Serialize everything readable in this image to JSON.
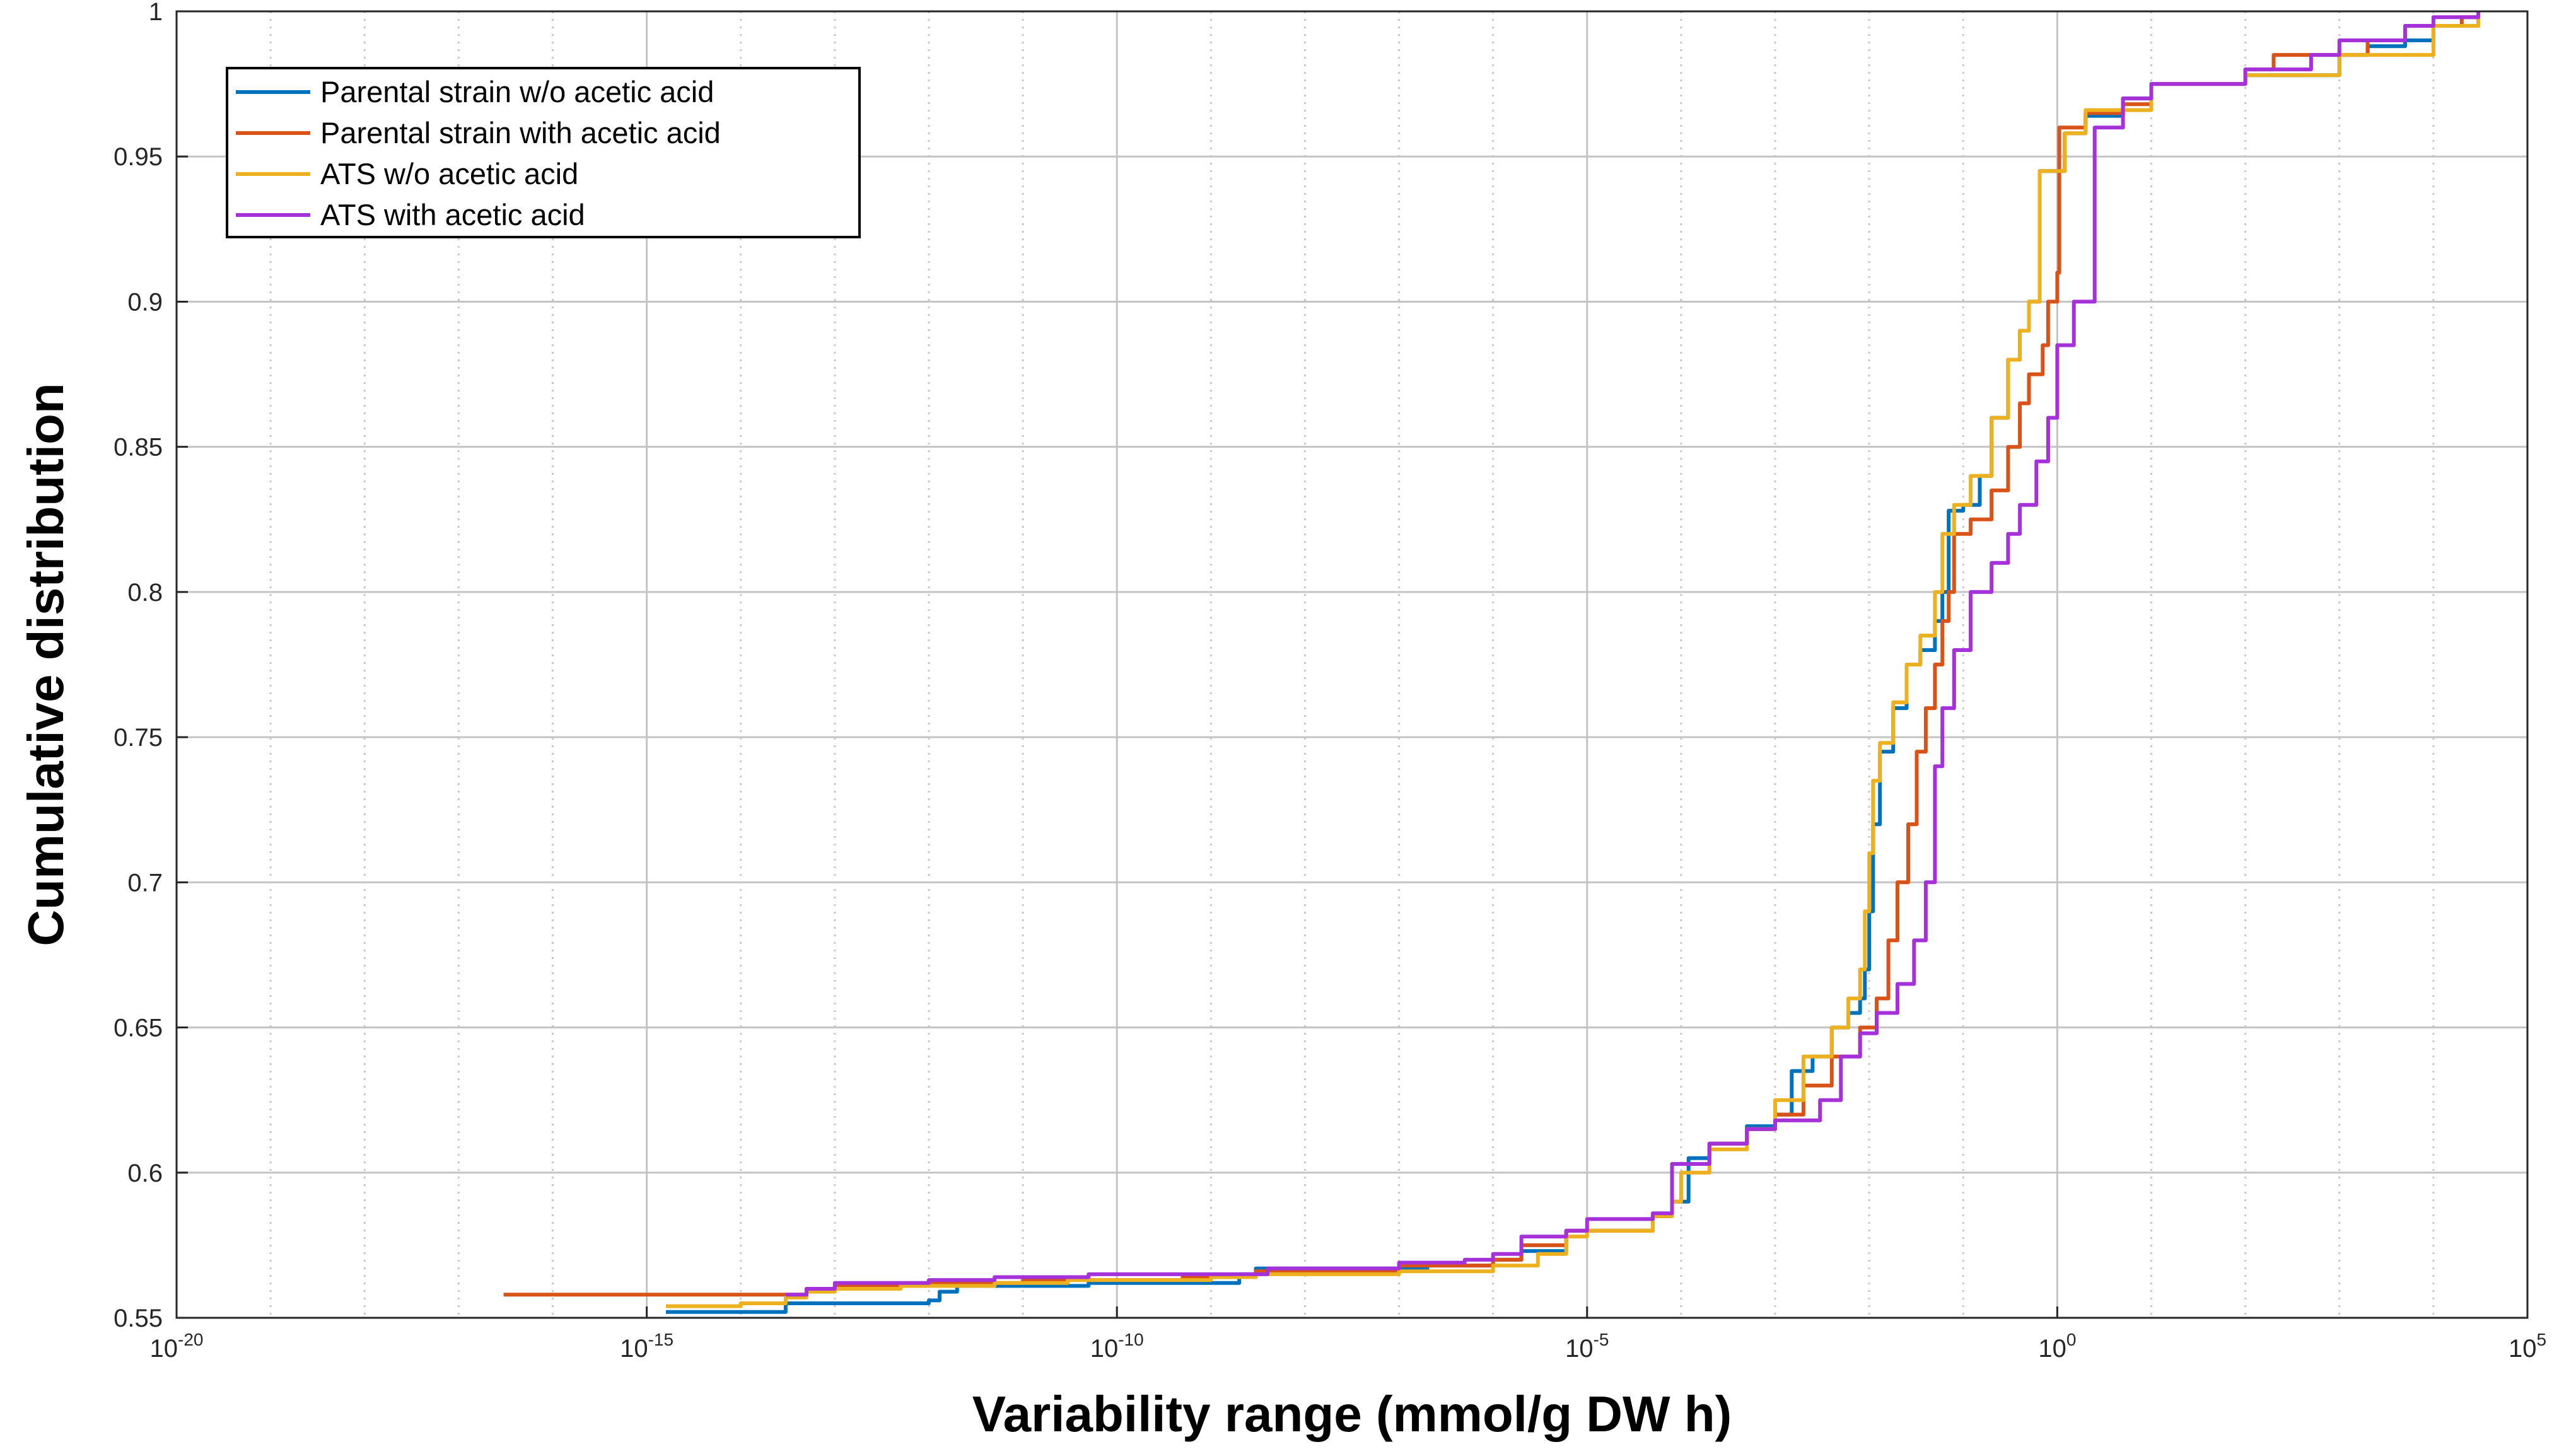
{
  "chart_data": {
    "type": "line",
    "title": "",
    "xlabel": "Variability range (mmol/g DW h)",
    "ylabel": "Cumulative distribution",
    "x_scale": "log",
    "xlim": [
      1e-20,
      100000
    ],
    "ylim": [
      0.55,
      1
    ],
    "x_ticks": [
      {
        "base": "10",
        "exp": "-20",
        "value": 1e-20
      },
      {
        "base": "10",
        "exp": "-15",
        "value": 1e-15
      },
      {
        "base": "10",
        "exp": "-10",
        "value": 1e-10
      },
      {
        "base": "10",
        "exp": "-5",
        "value": 1e-05
      },
      {
        "base": "10",
        "exp": "0",
        "value": 1
      },
      {
        "base": "10",
        "exp": "5",
        "value": 100000
      }
    ],
    "y_ticks": [
      "0.55",
      "0.6",
      "0.65",
      "0.7",
      "0.75",
      "0.8",
      "0.85",
      "0.9",
      "0.95",
      "1"
    ],
    "grid": true,
    "legend_position": "top-left",
    "series": [
      {
        "name": "Parental strain w/o acetic acid",
        "color": "#0072BD",
        "points": [
          [
            1.6e-15,
            0.552
          ],
          [
            3e-14,
            0.552
          ],
          [
            3e-14,
            0.555
          ],
          [
            1e-12,
            0.556
          ],
          [
            1.3e-12,
            0.556
          ],
          [
            1.3e-12,
            0.559
          ],
          [
            2e-12,
            0.561
          ],
          [
            5e-11,
            0.562
          ],
          [
            2e-09,
            0.565
          ],
          [
            3e-09,
            0.567
          ],
          [
            2e-08,
            0.567
          ],
          [
            2e-07,
            0.568
          ],
          [
            1e-06,
            0.57
          ],
          [
            2e-06,
            0.573
          ],
          [
            5e-06,
            0.573
          ],
          [
            6e-06,
            0.58
          ],
          [
            1e-05,
            0.58
          ],
          [
            5e-05,
            0.585
          ],
          [
            8e-05,
            0.59
          ],
          [
            0.00012,
            0.59
          ],
          [
            0.00012,
            0.605
          ],
          [
            0.0002,
            0.61
          ],
          [
            0.0005,
            0.616
          ],
          [
            0.001,
            0.62
          ],
          [
            0.0015,
            0.635
          ],
          [
            0.0025,
            0.64
          ],
          [
            0.004,
            0.65
          ],
          [
            0.006,
            0.655
          ],
          [
            0.008,
            0.66
          ],
          [
            0.009,
            0.67
          ],
          [
            0.01,
            0.69
          ],
          [
            0.011,
            0.72
          ],
          [
            0.013,
            0.745
          ],
          [
            0.018,
            0.76
          ],
          [
            0.025,
            0.775
          ],
          [
            0.035,
            0.78
          ],
          [
            0.05,
            0.79
          ],
          [
            0.06,
            0.8
          ],
          [
            0.07,
            0.828
          ],
          [
            0.1,
            0.83
          ],
          [
            0.15,
            0.84
          ],
          [
            0.2,
            0.86
          ],
          [
            0.3,
            0.88
          ],
          [
            0.4,
            0.89
          ],
          [
            0.5,
            0.9
          ],
          [
            0.6,
            0.9
          ],
          [
            0.65,
            0.945
          ],
          [
            1.2,
            0.958
          ],
          [
            2,
            0.964
          ],
          [
            5,
            0.97
          ],
          [
            10.0,
            0.975
          ],
          [
            100.0,
            0.978
          ],
          [
            1000.0,
            0.985
          ],
          [
            2000.0,
            0.988
          ],
          [
            5000.0,
            0.99
          ],
          [
            10000.0,
            0.995
          ],
          [
            30000.0,
            1.0
          ]
        ]
      },
      {
        "name": "Parental strain with acetic acid",
        "color": "#D95319",
        "points": [
          [
            3e-17,
            0.558
          ],
          [
            1e-15,
            0.558
          ],
          [
            2e-14,
            0.558
          ],
          [
            5e-14,
            0.56
          ],
          [
            1e-13,
            0.561
          ],
          [
            1e-12,
            0.562
          ],
          [
            1e-11,
            0.563
          ],
          [
            5e-10,
            0.564
          ],
          [
            3e-09,
            0.566
          ],
          [
            1e-07,
            0.568
          ],
          [
            1e-06,
            0.57
          ],
          [
            2e-06,
            0.575
          ],
          [
            6e-06,
            0.58
          ],
          [
            1e-05,
            0.58
          ],
          [
            5e-05,
            0.585
          ],
          [
            8e-05,
            0.59
          ],
          [
            8e-05,
            0.603
          ],
          [
            0.0002,
            0.61
          ],
          [
            0.0005,
            0.615
          ],
          [
            0.001,
            0.62
          ],
          [
            0.002,
            0.63
          ],
          [
            0.004,
            0.64
          ],
          [
            0.008,
            0.65
          ],
          [
            0.012,
            0.66
          ],
          [
            0.016,
            0.68
          ],
          [
            0.02,
            0.7
          ],
          [
            0.026,
            0.72
          ],
          [
            0.032,
            0.745
          ],
          [
            0.04,
            0.76
          ],
          [
            0.05,
            0.775
          ],
          [
            0.06,
            0.79
          ],
          [
            0.07,
            0.8
          ],
          [
            0.08,
            0.82
          ],
          [
            0.12,
            0.825
          ],
          [
            0.2,
            0.835
          ],
          [
            0.3,
            0.85
          ],
          [
            0.4,
            0.865
          ],
          [
            0.5,
            0.875
          ],
          [
            0.7,
            0.885
          ],
          [
            0.8,
            0.9
          ],
          [
            1.0,
            0.91
          ],
          [
            1.05,
            0.96
          ],
          [
            2,
            0.965
          ],
          [
            5,
            0.968
          ],
          [
            10.0,
            0.975
          ],
          [
            100.0,
            0.98
          ],
          [
            200.0,
            0.985
          ],
          [
            1000.0,
            0.985
          ],
          [
            2000.0,
            0.99
          ],
          [
            5000.0,
            0.995
          ],
          [
            20000.0,
            0.998
          ],
          [
            30000.0,
            1.0
          ]
        ]
      },
      {
        "name": "ATS w/o acetic acid",
        "color": "#EDB120",
        "points": [
          [
            1.6e-15,
            0.554
          ],
          [
            1e-14,
            0.555
          ],
          [
            3e-14,
            0.557
          ],
          [
            5e-14,
            0.559
          ],
          [
            1e-13,
            0.56
          ],
          [
            5e-13,
            0.561
          ],
          [
            5e-12,
            0.562
          ],
          [
            3e-11,
            0.563
          ],
          [
            1e-09,
            0.564
          ],
          [
            3e-09,
            0.565
          ],
          [
            1e-07,
            0.566
          ],
          [
            1e-06,
            0.568
          ],
          [
            3e-06,
            0.572
          ],
          [
            6e-06,
            0.578
          ],
          [
            1e-05,
            0.58
          ],
          [
            5e-05,
            0.585
          ],
          [
            8e-05,
            0.59
          ],
          [
            0.0001,
            0.6
          ],
          [
            0.0002,
            0.608
          ],
          [
            0.0005,
            0.615
          ],
          [
            0.001,
            0.625
          ],
          [
            0.002,
            0.64
          ],
          [
            0.004,
            0.65
          ],
          [
            0.006,
            0.66
          ],
          [
            0.008,
            0.67
          ],
          [
            0.009,
            0.69
          ],
          [
            0.01,
            0.71
          ],
          [
            0.011,
            0.735
          ],
          [
            0.013,
            0.748
          ],
          [
            0.018,
            0.762
          ],
          [
            0.025,
            0.775
          ],
          [
            0.035,
            0.785
          ],
          [
            0.05,
            0.8
          ],
          [
            0.06,
            0.82
          ],
          [
            0.08,
            0.83
          ],
          [
            0.12,
            0.84
          ],
          [
            0.2,
            0.86
          ],
          [
            0.3,
            0.88
          ],
          [
            0.4,
            0.89
          ],
          [
            0.5,
            0.9
          ],
          [
            0.6,
            0.9
          ],
          [
            0.65,
            0.945
          ],
          [
            1.2,
            0.958
          ],
          [
            2,
            0.966
          ],
          [
            10.0,
            0.975
          ],
          [
            100.0,
            0.978
          ],
          [
            1000.0,
            0.985
          ],
          [
            10000.0,
            0.995
          ],
          [
            30000.0,
            1.0
          ]
        ]
      },
      {
        "name": "ATS with acetic acid",
        "color": "#A531D9",
        "points": [
          [
            3e-14,
            0.558
          ],
          [
            5e-14,
            0.56
          ],
          [
            1e-13,
            0.562
          ],
          [
            1e-12,
            0.563
          ],
          [
            5e-12,
            0.564
          ],
          [
            5e-11,
            0.565
          ],
          [
            1e-09,
            0.565
          ],
          [
            4e-09,
            0.567
          ],
          [
            1e-07,
            0.569
          ],
          [
            5e-07,
            0.57
          ],
          [
            1e-06,
            0.572
          ],
          [
            2e-06,
            0.578
          ],
          [
            6e-06,
            0.58
          ],
          [
            1e-05,
            0.584
          ],
          [
            5e-05,
            0.586
          ],
          [
            8e-05,
            0.59
          ],
          [
            8e-05,
            0.603
          ],
          [
            0.0002,
            0.61
          ],
          [
            0.0005,
            0.615
          ],
          [
            0.001,
            0.618
          ],
          [
            0.003,
            0.625
          ],
          [
            0.005,
            0.64
          ],
          [
            0.008,
            0.648
          ],
          [
            0.012,
            0.655
          ],
          [
            0.02,
            0.665
          ],
          [
            0.03,
            0.68
          ],
          [
            0.04,
            0.7
          ],
          [
            0.05,
            0.74
          ],
          [
            0.06,
            0.76
          ],
          [
            0.08,
            0.78
          ],
          [
            0.12,
            0.8
          ],
          [
            0.2,
            0.81
          ],
          [
            0.3,
            0.82
          ],
          [
            0.4,
            0.83
          ],
          [
            0.6,
            0.845
          ],
          [
            0.8,
            0.86
          ],
          [
            1.0,
            0.885
          ],
          [
            1.5,
            0.9
          ],
          [
            2.5,
            0.91
          ],
          [
            2.5,
            0.96
          ],
          [
            5,
            0.97
          ],
          [
            10.0,
            0.975
          ],
          [
            100.0,
            0.98
          ],
          [
            500.0,
            0.985
          ],
          [
            1000.0,
            0.99
          ],
          [
            5000.0,
            0.995
          ],
          [
            10000.0,
            0.998
          ],
          [
            30000.0,
            1.0
          ]
        ]
      }
    ]
  }
}
